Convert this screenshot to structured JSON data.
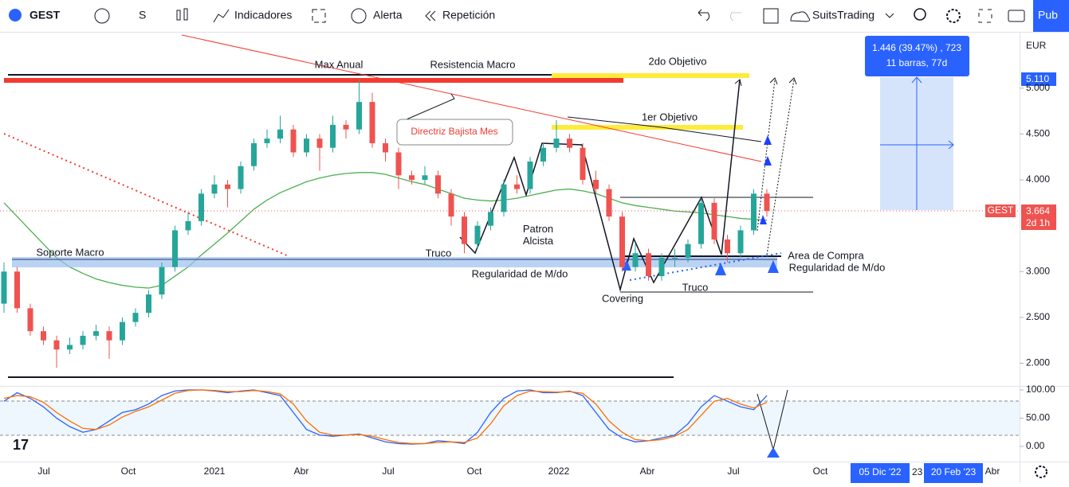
{
  "toolbar": {
    "symbol": "GEST",
    "interval": "S",
    "indicators": "Indicadores",
    "alert": "Alerta",
    "replay": "Repetición",
    "layout": "SuitsTrading",
    "publish": "Pub"
  },
  "price_chart": {
    "currency": "EUR",
    "ylim": [
      1.77,
      5.58
    ],
    "yticks": [
      {
        "value": 5,
        "label": "5.000"
      },
      {
        "value": 4.5,
        "label": "4.500"
      },
      {
        "value": 4,
        "label": "4.000"
      },
      {
        "value": 3,
        "label": "3.000"
      },
      {
        "value": 2.5,
        "label": "2.500"
      },
      {
        "value": 2,
        "label": "2.000"
      }
    ],
    "target_tag": {
      "value": 5.11,
      "label": "5.110"
    },
    "last_price_tag": {
      "value": 3.664,
      "label": "3.664"
    },
    "symbol_tag": "GEST",
    "countdown": "2d 1h",
    "measure": {
      "line1": "1.446 (39.47%) , 723",
      "line2": "11 barras, 77d"
    },
    "candles": [
      [
        2.65,
        3.1,
        2.55,
        3.0
      ],
      [
        3.0,
        3.05,
        2.55,
        2.6
      ],
      [
        2.6,
        2.65,
        2.3,
        2.35
      ],
      [
        2.35,
        2.4,
        2.2,
        2.25
      ],
      [
        2.25,
        2.3,
        1.95,
        2.15
      ],
      [
        2.15,
        2.28,
        2.1,
        2.2
      ],
      [
        2.2,
        2.35,
        2.15,
        2.3
      ],
      [
        2.3,
        2.42,
        2.25,
        2.35
      ],
      [
        2.35,
        2.4,
        2.05,
        2.25
      ],
      [
        2.25,
        2.5,
        2.2,
        2.45
      ],
      [
        2.45,
        2.6,
        2.4,
        2.55
      ],
      [
        2.55,
        2.8,
        2.5,
        2.75
      ],
      [
        2.75,
        3.1,
        2.7,
        3.05
      ],
      [
        3.05,
        3.5,
        3.0,
        3.45
      ],
      [
        3.45,
        3.65,
        3.4,
        3.55
      ],
      [
        3.55,
        3.9,
        3.5,
        3.85
      ],
      [
        3.85,
        4.05,
        3.8,
        3.95
      ],
      [
        3.95,
        4.0,
        3.7,
        3.9
      ],
      [
        3.9,
        4.2,
        3.85,
        4.15
      ],
      [
        4.15,
        4.45,
        4.1,
        4.4
      ],
      [
        4.4,
        4.55,
        4.35,
        4.45
      ],
      [
        4.45,
        4.7,
        4.4,
        4.55
      ],
      [
        4.55,
        4.6,
        4.25,
        4.3
      ],
      [
        4.3,
        4.5,
        4.25,
        4.45
      ],
      [
        4.45,
        4.5,
        4.1,
        4.35
      ],
      [
        4.35,
        4.7,
        4.3,
        4.6
      ],
      [
        4.6,
        4.65,
        4.45,
        4.55
      ],
      [
        4.55,
        5.1,
        4.5,
        4.85
      ],
      [
        4.85,
        4.95,
        4.35,
        4.4
      ],
      [
        4.4,
        4.45,
        4.2,
        4.3
      ],
      [
        4.3,
        4.35,
        3.9,
        4.05
      ],
      [
        4.05,
        4.1,
        3.95,
        4.0
      ],
      [
        4.0,
        4.15,
        3.95,
        4.05
      ],
      [
        4.05,
        4.1,
        3.8,
        3.85
      ],
      [
        3.85,
        3.9,
        3.5,
        3.6
      ],
      [
        3.6,
        3.65,
        3.2,
        3.3
      ],
      [
        3.3,
        3.55,
        3.25,
        3.5
      ],
      [
        3.5,
        3.7,
        3.45,
        3.65
      ],
      [
        3.65,
        4.0,
        3.6,
        3.95
      ],
      [
        3.95,
        4.05,
        3.85,
        3.9
      ],
      [
        3.9,
        4.25,
        3.85,
        4.2
      ],
      [
        4.2,
        4.4,
        4.15,
        4.35
      ],
      [
        4.35,
        4.65,
        4.3,
        4.45
      ],
      [
        4.45,
        4.5,
        4.3,
        4.35
      ],
      [
        4.35,
        4.4,
        3.95,
        4.0
      ],
      [
        4.0,
        4.1,
        3.85,
        3.9
      ],
      [
        3.9,
        3.95,
        3.55,
        3.6
      ],
      [
        3.6,
        3.65,
        3.0,
        3.05
      ],
      [
        3.05,
        3.3,
        3.0,
        3.2
      ],
      [
        3.2,
        3.25,
        2.9,
        2.95
      ],
      [
        2.95,
        3.2,
        2.9,
        3.15
      ],
      [
        3.15,
        3.25,
        3.05,
        3.15
      ],
      [
        3.15,
        3.35,
        3.1,
        3.3
      ],
      [
        3.3,
        3.8,
        3.25,
        3.75
      ],
      [
        3.75,
        3.8,
        3.3,
        3.35
      ],
      [
        3.35,
        3.4,
        3.1,
        3.2
      ],
      [
        3.2,
        3.5,
        3.15,
        3.45
      ],
      [
        3.45,
        3.9,
        3.4,
        3.85
      ],
      [
        3.85,
        3.9,
        3.6,
        3.66
      ]
    ],
    "ma": [
      3.75,
      3.6,
      3.45,
      3.3,
      3.15,
      3.05,
      2.98,
      2.92,
      2.88,
      2.85,
      2.83,
      2.82,
      2.85,
      2.95,
      3.05,
      3.18,
      3.3,
      3.42,
      3.55,
      3.68,
      3.78,
      3.86,
      3.92,
      3.98,
      4.02,
      4.05,
      4.07,
      4.08,
      4.08,
      4.06,
      4.02,
      3.98,
      3.95,
      3.9,
      3.85,
      3.8,
      3.78,
      3.77,
      3.78,
      3.8,
      3.83,
      3.86,
      3.89,
      3.9,
      3.88,
      3.85,
      3.8,
      3.75,
      3.72,
      3.7,
      3.68,
      3.66,
      3.65,
      3.64,
      3.62,
      3.6,
      3.58,
      3.57,
      3.56
    ],
    "ma_color": "#4caf50",
    "up_color": "#26a69a",
    "down_color": "#ef5350"
  },
  "oscillator": {
    "ylim": [
      -26.8,
      104.2
    ],
    "yticks": [
      {
        "value": 100,
        "label": "100.00"
      },
      {
        "value": 50,
        "label": "50.00"
      },
      {
        "value": 0,
        "label": "0.00"
      }
    ],
    "k": [
      80,
      95,
      85,
      70,
      50,
      35,
      25,
      30,
      45,
      60,
      65,
      75,
      90,
      98,
      100,
      100,
      98,
      95,
      98,
      100,
      95,
      90,
      60,
      30,
      20,
      18,
      20,
      22,
      15,
      8,
      5,
      4,
      5,
      10,
      8,
      5,
      25,
      60,
      85,
      98,
      100,
      95,
      95,
      98,
      90,
      60,
      30,
      15,
      8,
      10,
      15,
      20,
      40,
      70,
      90,
      80,
      70,
      65,
      90
    ],
    "d": [
      85,
      90,
      88,
      78,
      60,
      45,
      32,
      30,
      38,
      52,
      62,
      70,
      82,
      94,
      99,
      100,
      99,
      97,
      97,
      99,
      97,
      93,
      75,
      45,
      25,
      20,
      20,
      21,
      18,
      12,
      7,
      5,
      5,
      7,
      8,
      7,
      15,
      40,
      72,
      90,
      98,
      97,
      96,
      97,
      94,
      75,
      45,
      25,
      12,
      10,
      12,
      18,
      30,
      55,
      80,
      85,
      75,
      68,
      78
    ],
    "k_color": "#2962ff",
    "d_color": "#ff6d00"
  },
  "time_axis": {
    "labels": [
      "Jul",
      "Oct",
      "2021",
      "Abr",
      "Jul",
      "Oct",
      "2022",
      "Abr",
      "Jul",
      "Oct",
      "Abr"
    ],
    "range_start": "05 Dic '22",
    "range_end": "20 Feb '23",
    "partial": "23"
  },
  "annotations": {
    "max_anual": "Max Anual",
    "resistencia": "Resistencia Macro",
    "objetivo2": "2do Objetivo",
    "objetivo1": "1er Objetivo",
    "directriz": "Directriz Bajista Mes",
    "soporte": "Soporte Macro",
    "truco1": "Truco",
    "patron": "Patron\nAlcista",
    "regularidad1": "Regularidad de M/do",
    "covering": "Covering",
    "truco2": "Truco",
    "area": "Area de Compra",
    "regularidad2": "Regularidad de M/do"
  }
}
